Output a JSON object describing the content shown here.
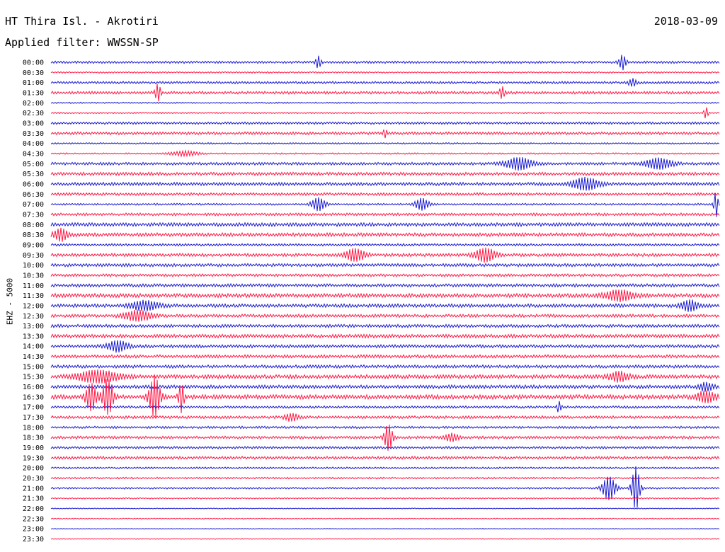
{
  "header": {
    "station": "HT Thira Isl. - Akrotiri",
    "date": "2018-03-09",
    "filter": "Applied filter: WWSSN-SP"
  },
  "chart_data": {
    "type": "line",
    "title": "HT Thira Isl. - Akrotiri",
    "ylabel": "EHZ - 5000",
    "colors": [
      "#1a1ad0",
      "#ff1744"
    ],
    "row_labels": [
      "00:00",
      "00:30",
      "01:00",
      "01:30",
      "02:00",
      "02:30",
      "03:00",
      "03:30",
      "04:00",
      "04:30",
      "05:00",
      "05:30",
      "06:00",
      "06:30",
      "07:00",
      "07:30",
      "08:00",
      "08:30",
      "09:00",
      "09:30",
      "10:00",
      "10:30",
      "11:00",
      "11:30",
      "12:00",
      "12:30",
      "13:00",
      "13:30",
      "14:00",
      "14:30",
      "15:00",
      "15:30",
      "16:00",
      "16:30",
      "17:00",
      "17:30",
      "18:00",
      "18:30",
      "19:00",
      "19:30",
      "20:00",
      "20:30",
      "21:00",
      "21:30",
      "22:00",
      "22:30",
      "23:00",
      "23:30"
    ],
    "base_amplitude": [
      1.2,
      0.8,
      1.2,
      1.4,
      0.7,
      0.7,
      1.2,
      1.4,
      0.8,
      0.8,
      1.4,
      1.6,
      1.6,
      1.4,
      1.0,
      1.4,
      1.8,
      1.8,
      1.2,
      1.6,
      1.6,
      1.4,
      1.6,
      2.0,
      1.8,
      1.6,
      1.6,
      1.8,
      1.6,
      1.6,
      1.6,
      2.0,
      1.8,
      2.2,
      1.2,
      1.4,
      1.2,
      1.4,
      1.2,
      1.4,
      0.9,
      0.9,
      0.9,
      0.7,
      0.5,
      0.5,
      0.4,
      0.4
    ],
    "bursts": [
      {
        "row": 0,
        "at": 0.4,
        "width": 0.004,
        "amp": 8
      },
      {
        "row": 0,
        "at": 0.855,
        "width": 0.005,
        "amp": 10
      },
      {
        "row": 2,
        "at": 0.87,
        "width": 0.006,
        "amp": 5
      },
      {
        "row": 3,
        "at": 0.16,
        "width": 0.004,
        "amp": 12
      },
      {
        "row": 3,
        "at": 0.675,
        "width": 0.004,
        "amp": 8
      },
      {
        "row": 5,
        "at": 0.98,
        "width": 0.003,
        "amp": 8
      },
      {
        "row": 7,
        "at": 0.5,
        "width": 0.003,
        "amp": 6
      },
      {
        "row": 9,
        "at": 0.2,
        "width": 0.02,
        "amp": 3
      },
      {
        "row": 10,
        "at": 0.7,
        "width": 0.02,
        "amp": 8
      },
      {
        "row": 10,
        "at": 0.91,
        "width": 0.02,
        "amp": 7
      },
      {
        "row": 12,
        "at": 0.8,
        "width": 0.02,
        "amp": 8
      },
      {
        "row": 14,
        "at": 0.4,
        "width": 0.01,
        "amp": 9
      },
      {
        "row": 14,
        "at": 0.555,
        "width": 0.01,
        "amp": 8
      },
      {
        "row": 14,
        "at": 0.995,
        "width": 0.003,
        "amp": 18
      },
      {
        "row": 17,
        "at": 0.015,
        "width": 0.01,
        "amp": 8
      },
      {
        "row": 19,
        "at": 0.455,
        "width": 0.015,
        "amp": 8
      },
      {
        "row": 19,
        "at": 0.65,
        "width": 0.015,
        "amp": 9
      },
      {
        "row": 23,
        "at": 0.85,
        "width": 0.02,
        "amp": 7
      },
      {
        "row": 24,
        "at": 0.14,
        "width": 0.02,
        "amp": 6
      },
      {
        "row": 24,
        "at": 0.955,
        "width": 0.012,
        "amp": 7
      },
      {
        "row": 25,
        "at": 0.13,
        "width": 0.02,
        "amp": 7
      },
      {
        "row": 28,
        "at": 0.1,
        "width": 0.015,
        "amp": 7
      },
      {
        "row": 31,
        "at": 0.07,
        "width": 0.03,
        "amp": 8
      },
      {
        "row": 31,
        "at": 0.85,
        "width": 0.015,
        "amp": 6
      },
      {
        "row": 32,
        "at": 0.98,
        "width": 0.01,
        "amp": 5
      },
      {
        "row": 33,
        "at": 0.06,
        "width": 0.008,
        "amp": 18
      },
      {
        "row": 33,
        "at": 0.085,
        "width": 0.008,
        "amp": 24
      },
      {
        "row": 33,
        "at": 0.155,
        "width": 0.008,
        "amp": 28
      },
      {
        "row": 33,
        "at": 0.195,
        "width": 0.004,
        "amp": 20
      },
      {
        "row": 33,
        "at": 0.98,
        "width": 0.015,
        "amp": 7
      },
      {
        "row": 34,
        "at": 0.76,
        "width": 0.003,
        "amp": 8
      },
      {
        "row": 35,
        "at": 0.36,
        "width": 0.01,
        "amp": 5
      },
      {
        "row": 37,
        "at": 0.505,
        "width": 0.006,
        "amp": 18
      },
      {
        "row": 37,
        "at": 0.6,
        "width": 0.01,
        "amp": 5
      },
      {
        "row": 42,
        "at": 0.835,
        "width": 0.01,
        "amp": 16
      },
      {
        "row": 42,
        "at": 0.875,
        "width": 0.006,
        "amp": 30
      }
    ]
  }
}
